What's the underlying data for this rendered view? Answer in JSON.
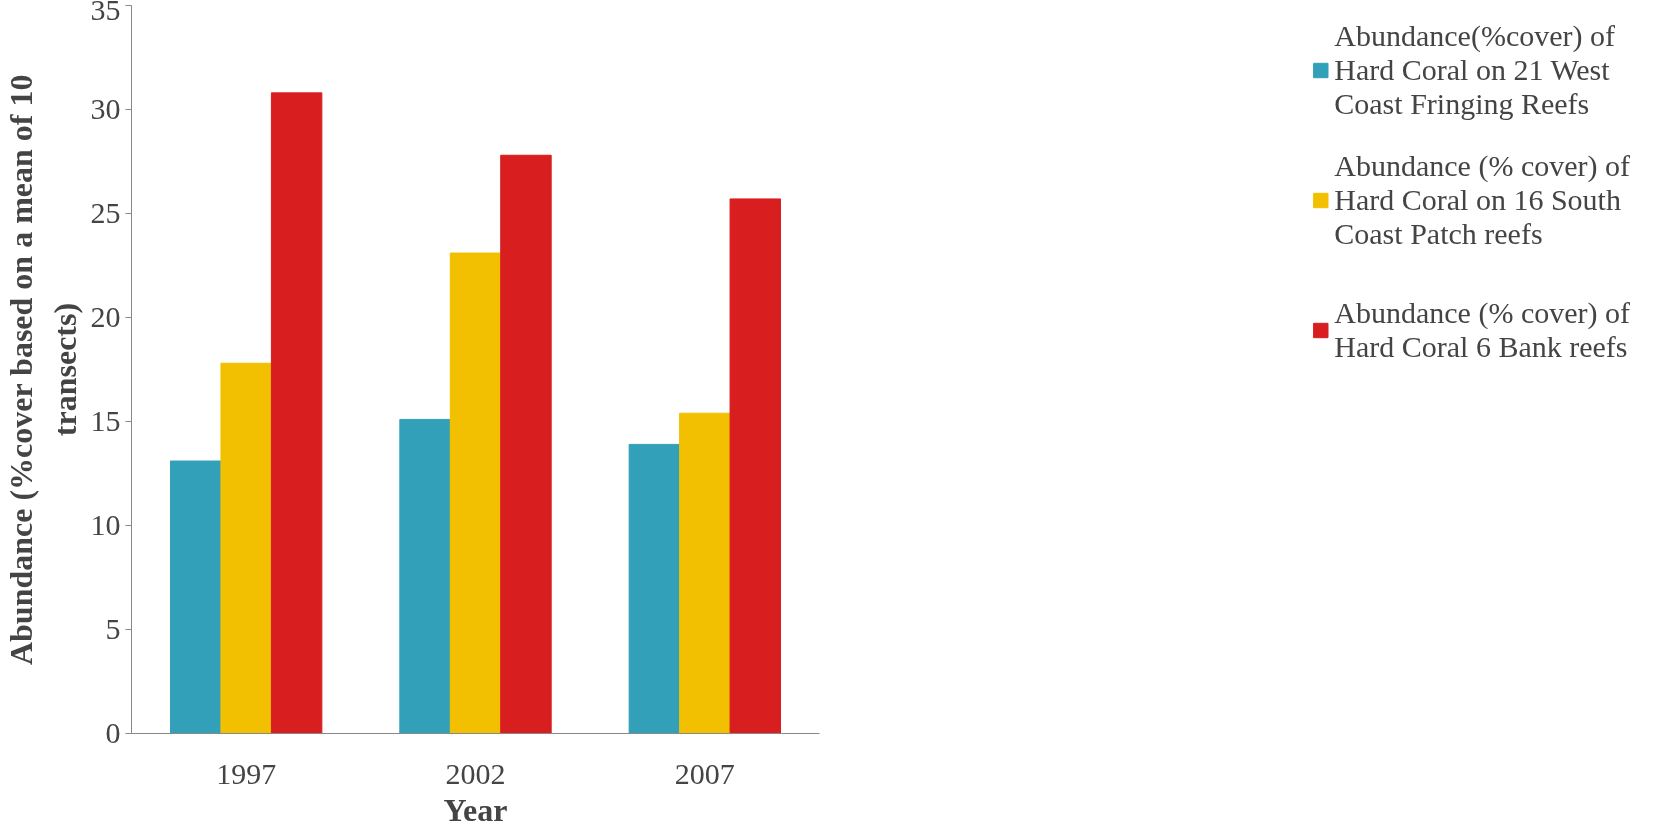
{
  "chart_data": {
    "type": "bar",
    "xlabel": "Year",
    "ylabel": "Abundance (%cover based on a mean of 10 transects)",
    "categories": [
      "1997",
      "2002",
      "2007"
    ],
    "series": [
      {
        "name": "Abundance(%cover) of Hard Coral on 21 West Coast Fringing Reefs",
        "color": "#31a0b8",
        "values": [
          13.1,
          15.1,
          13.9
        ]
      },
      {
        "name": "Abundance (% cover) of Hard Coral on 16 South Coast Patch reefs",
        "color": "#f2c000",
        "values": [
          17.8,
          23.1,
          15.4
        ]
      },
      {
        "name": "Abundance (% cover) of Hard Coral 6 Bank reefs",
        "color": "#d81e1e",
        "values": [
          30.8,
          27.8,
          25.7
        ]
      }
    ],
    "ylim": [
      0,
      35
    ],
    "yticks": [
      0,
      5,
      10,
      15,
      20,
      25,
      30,
      35
    ],
    "grid": false,
    "legend": "right"
  }
}
